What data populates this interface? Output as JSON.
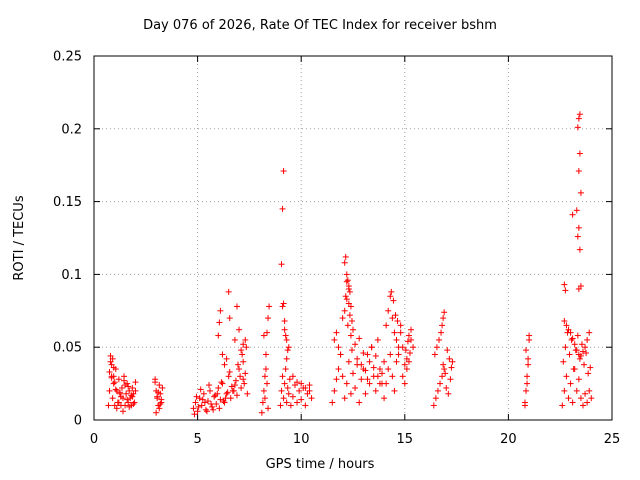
{
  "chart_data": {
    "type": "scatter",
    "title": "Day 076 of 2026, Rate Of TEC Index for receiver bshm",
    "xlabel": "GPS time / hours",
    "ylabel": "ROTI / TECUs",
    "xlim": [
      0,
      25
    ],
    "ylim": [
      0,
      0.25
    ],
    "x_ticks": [
      "0",
      "5",
      "10",
      "15",
      "20",
      "25"
    ],
    "y_ticks": [
      "0",
      "0.05",
      "0.1",
      "0.15",
      "0.2",
      "0.25"
    ],
    "grid": true,
    "marker": "+",
    "color": "#ff0000",
    "series": [
      {
        "x": [
          0.7,
          0.75,
          0.8,
          0.85,
          0.9,
          0.95,
          1.0,
          1.05,
          1.1,
          1.15,
          1.2,
          1.25,
          1.3,
          1.35,
          1.4,
          1.45,
          1.5,
          1.55,
          1.6,
          1.65,
          1.7,
          1.75,
          1.8,
          1.85,
          1.9,
          1.95,
          2.0,
          0.8,
          0.85,
          0.9,
          0.95,
          1.0,
          1.1,
          1.2,
          1.3,
          1.4,
          1.5,
          1.6,
          1.7,
          1.8,
          1.9,
          2.0,
          0.75,
          0.85,
          0.95,
          1.05,
          1.25,
          1.45,
          1.65,
          1.85,
          2.95,
          3.0,
          3.05,
          3.1,
          3.15,
          3.2,
          3.25,
          3.3,
          2.95,
          3.05,
          3.15,
          3.25,
          3.0,
          3.1,
          3.2,
          4.8,
          4.9,
          5.0,
          5.1,
          5.2,
          5.3,
          5.4,
          5.5,
          5.6,
          5.7,
          5.8,
          5.9,
          6.0,
          6.1,
          6.2,
          6.3,
          6.4,
          6.5,
          6.6,
          6.7,
          6.8,
          6.9,
          7.0,
          7.1,
          7.2,
          7.3,
          7.4,
          4.85,
          5.05,
          5.25,
          5.45,
          5.65,
          5.85,
          6.05,
          6.25,
          6.45,
          6.65,
          6.85,
          7.05,
          7.25,
          4.95,
          5.15,
          5.35,
          5.55,
          5.75,
          5.95,
          6.15,
          6.35,
          6.55,
          6.75,
          6.95,
          7.15,
          7.35,
          6.0,
          6.05,
          6.1,
          6.2,
          6.5,
          6.55,
          6.8,
          6.9,
          7.0,
          7.1,
          7.2,
          7.3,
          7.2,
          6.3,
          6.4,
          8.1,
          8.15,
          8.2,
          8.25,
          8.3,
          8.35,
          8.4,
          8.45,
          8.2,
          8.3,
          8.35,
          8.25,
          8.4,
          9.0,
          9.05,
          9.1,
          9.15,
          9.2,
          9.25,
          9.3,
          9.35,
          9.4,
          9.45,
          9.5,
          9.6,
          9.7,
          9.8,
          9.9,
          10.0,
          10.1,
          10.2,
          10.3,
          10.4,
          10.5,
          9.1,
          9.15,
          9.2,
          9.25,
          9.3,
          9.3,
          9.35,
          9.05,
          9.1,
          9.15,
          9.2,
          9.4,
          9.6,
          9.8,
          10.0,
          10.2,
          10.4,
          11.5,
          11.6,
          11.7,
          11.8,
          11.9,
          12.0,
          12.1,
          12.2,
          12.3,
          12.4,
          12.5,
          12.6,
          12.7,
          12.8,
          12.9,
          13.0,
          13.1,
          13.2,
          13.3,
          13.4,
          13.5,
          13.6,
          13.7,
          13.8,
          13.9,
          14.0,
          11.6,
          11.7,
          11.8,
          11.9,
          12.0,
          12.1,
          12.15,
          12.2,
          12.25,
          12.3,
          12.35,
          12.4,
          12.45,
          12.5,
          12.6,
          12.7,
          12.8,
          12.9,
          13.0,
          13.1,
          13.2,
          13.3,
          13.4,
          13.5,
          13.6,
          13.7,
          13.8,
          13.9,
          12.1,
          12.15,
          12.2,
          12.25,
          12.3,
          12.35,
          12.4,
          12.45,
          12.2,
          12.3,
          14.0,
          14.1,
          14.2,
          14.3,
          14.4,
          14.5,
          14.6,
          14.7,
          14.8,
          14.9,
          15.0,
          15.1,
          15.2,
          15.3,
          15.4,
          14.1,
          14.2,
          14.3,
          14.4,
          14.5,
          14.6,
          14.7,
          14.8,
          14.9,
          15.0,
          15.1,
          15.2,
          15.3,
          14.35,
          14.45,
          14.55,
          14.65,
          15.05,
          15.15,
          15.25,
          16.4,
          16.5,
          16.6,
          16.7,
          16.8,
          16.9,
          17.0,
          17.1,
          17.2,
          17.3,
          16.45,
          16.55,
          16.65,
          16.75,
          16.85,
          16.95,
          17.05,
          17.15,
          17.25,
          16.8,
          16.85,
          16.9,
          20.8,
          20.85,
          20.9,
          20.95,
          21.0,
          20.8,
          20.9,
          21.0,
          20.85,
          20.95,
          22.6,
          22.7,
          22.8,
          22.9,
          23.0,
          23.1,
          23.2,
          23.3,
          23.4,
          23.5,
          23.6,
          23.7,
          23.8,
          23.9,
          24.0,
          22.65,
          22.75,
          22.85,
          22.95,
          23.05,
          23.15,
          23.25,
          23.35,
          23.45,
          23.55,
          23.65,
          23.75,
          23.85,
          23.95,
          22.7,
          22.8,
          22.9,
          23.0,
          23.1,
          23.2,
          23.3,
          23.4,
          23.5,
          23.6,
          23.7,
          23.8,
          23.9,
          23.1,
          23.3,
          23.35,
          23.4,
          23.45,
          23.5,
          23.4,
          23.45,
          23.35,
          23.4,
          23.45,
          23.5,
          23.4,
          22.7,
          22.75
        ],
        "y": [
          0.01,
          0.02,
          0.04,
          0.03,
          0.015,
          0.025,
          0.01,
          0.035,
          0.02,
          0.012,
          0.028,
          0.018,
          0.01,
          0.022,
          0.015,
          0.03,
          0.01,
          0.018,
          0.025,
          0.012,
          0.02,
          0.015,
          0.01,
          0.022,
          0.018,
          0.012,
          0.02,
          0.044,
          0.038,
          0.042,
          0.03,
          0.026,
          0.008,
          0.012,
          0.016,
          0.006,
          0.024,
          0.014,
          0.009,
          0.017,
          0.011,
          0.026,
          0.033,
          0.029,
          0.036,
          0.021,
          0.019,
          0.027,
          0.023,
          0.016,
          0.026,
          0.02,
          0.015,
          0.01,
          0.024,
          0.018,
          0.012,
          0.022,
          0.028,
          0.016,
          0.008,
          0.014,
          0.005,
          0.019,
          0.011,
          0.008,
          0.012,
          0.006,
          0.015,
          0.01,
          0.018,
          0.007,
          0.013,
          0.02,
          0.009,
          0.016,
          0.011,
          0.022,
          0.014,
          0.025,
          0.012,
          0.018,
          0.03,
          0.015,
          0.02,
          0.024,
          0.017,
          0.035,
          0.022,
          0.028,
          0.032,
          0.018,
          0.004,
          0.009,
          0.014,
          0.006,
          0.011,
          0.017,
          0.008,
          0.013,
          0.019,
          0.023,
          0.027,
          0.03,
          0.025,
          0.016,
          0.021,
          0.012,
          0.024,
          0.007,
          0.018,
          0.026,
          0.015,
          0.033,
          0.02,
          0.038,
          0.045,
          0.05,
          0.058,
          0.067,
          0.075,
          0.045,
          0.088,
          0.07,
          0.055,
          0.078,
          0.062,
          0.048,
          0.052,
          0.055,
          0.04,
          0.038,
          0.042,
          0.005,
          0.012,
          0.02,
          0.03,
          0.045,
          0.06,
          0.07,
          0.078,
          0.058,
          0.035,
          0.025,
          0.015,
          0.008,
          0.01,
          0.02,
          0.03,
          0.015,
          0.025,
          0.035,
          0.012,
          0.022,
          0.018,
          0.028,
          0.01,
          0.016,
          0.024,
          0.012,
          0.02,
          0.014,
          0.022,
          0.01,
          0.018,
          0.024,
          0.015,
          0.078,
          0.08,
          0.062,
          0.058,
          0.055,
          0.042,
          0.048,
          0.107,
          0.145,
          0.171,
          0.068,
          0.05,
          0.03,
          0.026,
          0.025,
          0.022,
          0.02,
          0.012,
          0.02,
          0.028,
          0.035,
          0.045,
          0.03,
          0.015,
          0.025,
          0.04,
          0.018,
          0.032,
          0.022,
          0.038,
          0.012,
          0.028,
          0.035,
          0.018,
          0.045,
          0.025,
          0.05,
          0.03,
          0.02,
          0.055,
          0.035,
          0.025,
          0.04,
          0.055,
          0.06,
          0.05,
          0.045,
          0.07,
          0.075,
          0.085,
          0.095,
          0.065,
          0.08,
          0.072,
          0.058,
          0.048,
          0.062,
          0.052,
          0.042,
          0.056,
          0.038,
          0.046,
          0.034,
          0.028,
          0.04,
          0.05,
          0.036,
          0.044,
          0.03,
          0.025,
          0.032,
          0.108,
          0.112,
          0.1,
          0.096,
          0.092,
          0.088,
          0.078,
          0.068,
          0.083,
          0.09,
          0.015,
          0.025,
          0.035,
          0.045,
          0.03,
          0.02,
          0.04,
          0.05,
          0.06,
          0.03,
          0.025,
          0.035,
          0.04,
          0.055,
          0.05,
          0.065,
          0.075,
          0.085,
          0.07,
          0.06,
          0.055,
          0.045,
          0.065,
          0.05,
          0.038,
          0.042,
          0.058,
          0.062,
          0.088,
          0.082,
          0.072,
          0.068,
          0.048,
          0.054,
          0.046,
          0.01,
          0.015,
          0.02,
          0.025,
          0.03,
          0.035,
          0.022,
          0.018,
          0.028,
          0.04,
          0.045,
          0.05,
          0.055,
          0.06,
          0.038,
          0.032,
          0.048,
          0.042,
          0.036,
          0.065,
          0.07,
          0.074,
          0.01,
          0.02,
          0.03,
          0.042,
          0.055,
          0.012,
          0.025,
          0.058,
          0.048,
          0.038,
          0.01,
          0.02,
          0.03,
          0.015,
          0.025,
          0.012,
          0.035,
          0.02,
          0.028,
          0.015,
          0.01,
          0.018,
          0.012,
          0.02,
          0.015,
          0.04,
          0.05,
          0.06,
          0.045,
          0.055,
          0.035,
          0.048,
          0.058,
          0.042,
          0.052,
          0.038,
          0.046,
          0.032,
          0.036,
          0.068,
          0.065,
          0.062,
          0.06,
          0.056,
          0.052,
          0.048,
          0.045,
          0.044,
          0.047,
          0.05,
          0.055,
          0.06,
          0.141,
          0.144,
          0.126,
          0.132,
          0.117,
          0.156,
          0.171,
          0.183,
          0.201,
          0.207,
          0.21,
          0.092,
          0.09,
          0.093,
          0.089
        ]
      }
    ]
  }
}
